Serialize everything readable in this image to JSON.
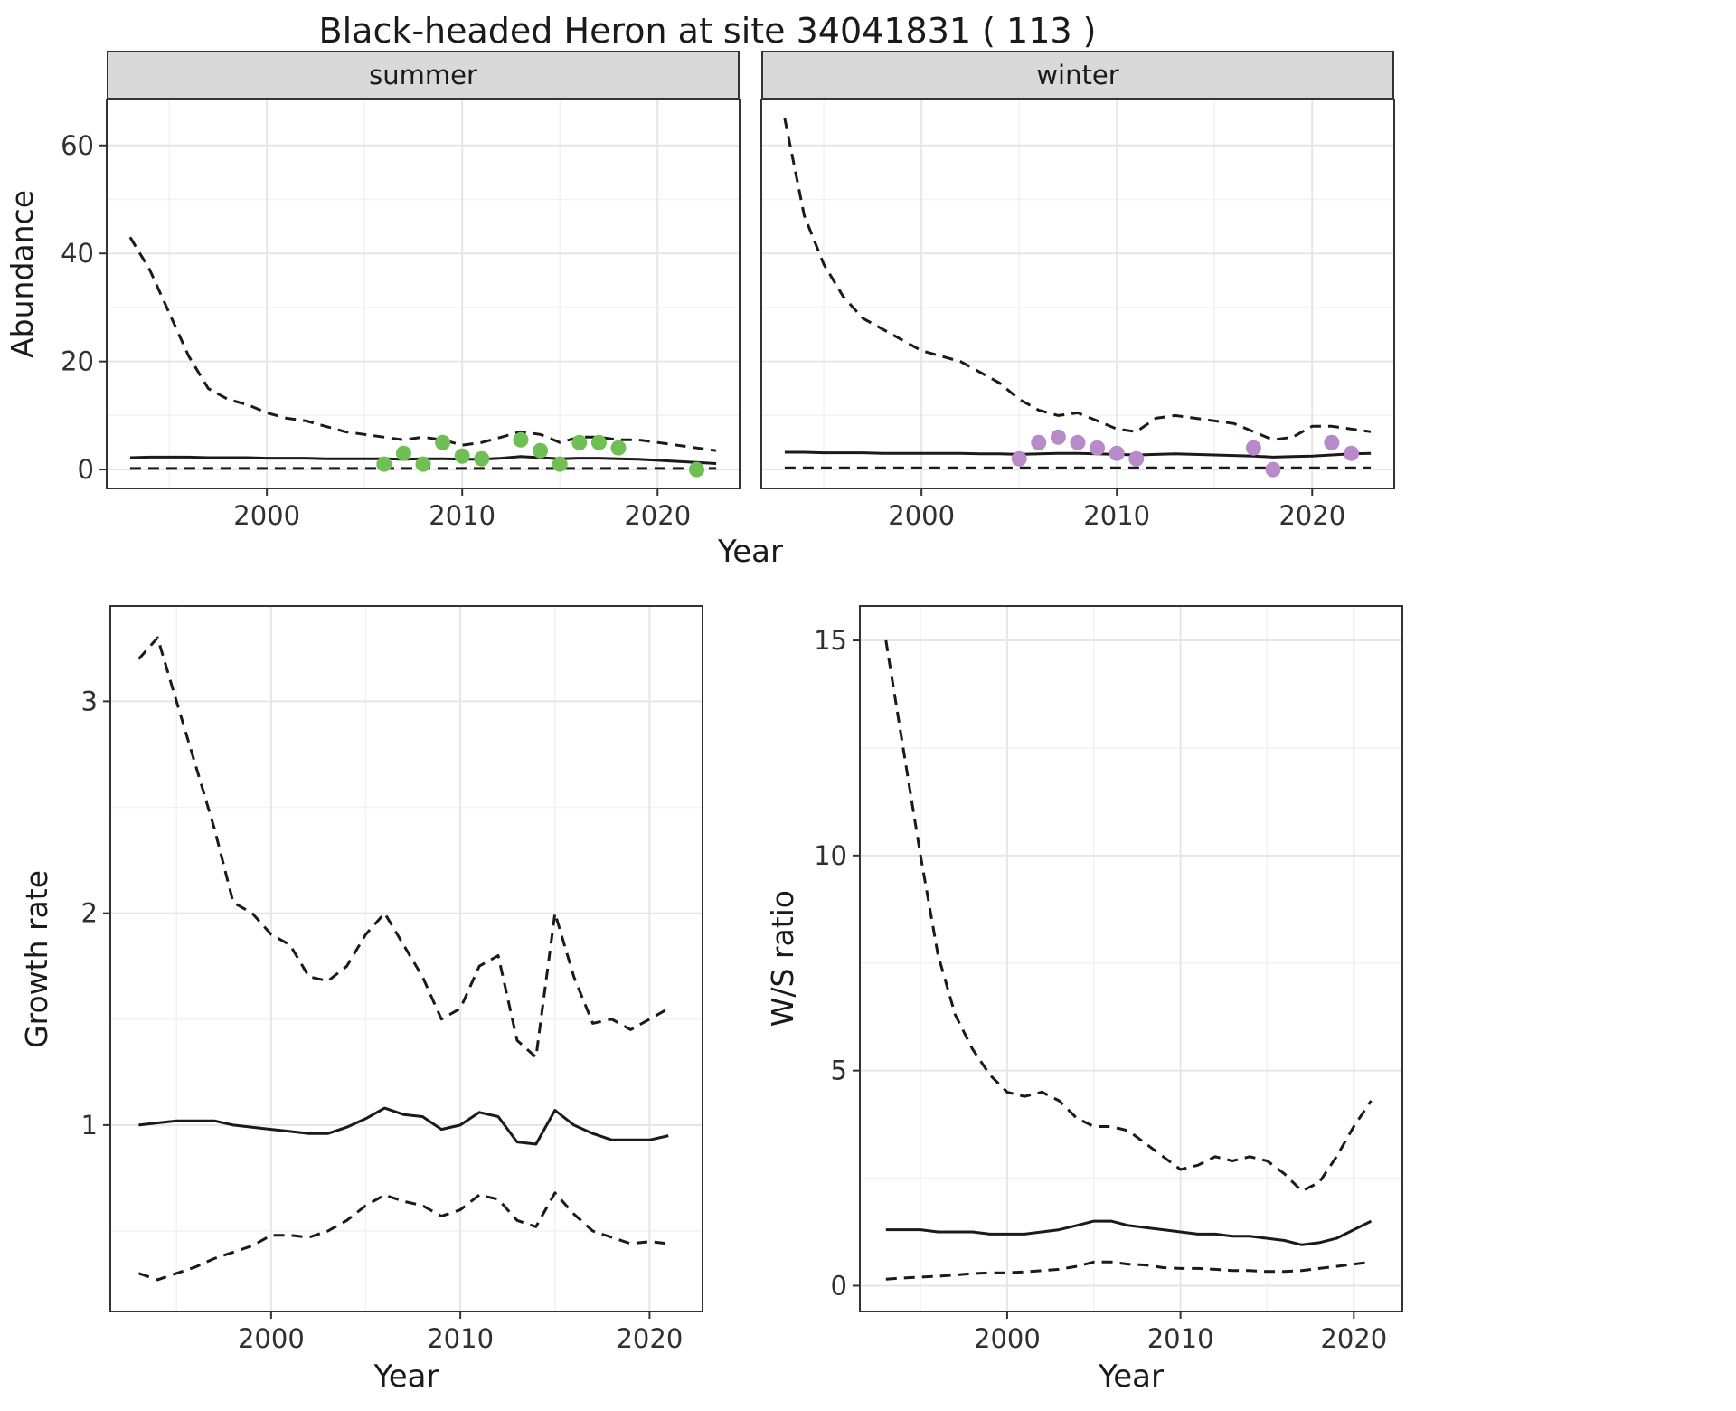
{
  "title": "Black-headed Heron at site 34041831 ( 113 )",
  "colors": {
    "line": "#1a1a1a",
    "panel_border": "#333333",
    "grid_major": "#e6e6e6",
    "grid_minor": "#f2f2f2",
    "strip_bg": "#d9d9d9",
    "summer_points": "#6fbf55",
    "winter_points": "#b78bca",
    "text": "#303030"
  },
  "chart_data": [
    {
      "type": "line",
      "facet_label": "summer",
      "xlabel": "Year",
      "ylabel": "Abundance",
      "xlim": [
        1991.8,
        2024.2
      ],
      "ylim": [
        -3.5,
        68.5
      ],
      "xticks": [
        2000,
        2010,
        2020
      ],
      "xminor": [
        1995,
        2005,
        2015
      ],
      "yticks": [
        0,
        20,
        40,
        60
      ],
      "yminor": [
        10,
        30,
        50
      ],
      "x": [
        1993,
        1994,
        1995,
        1996,
        1997,
        1998,
        1999,
        2000,
        2001,
        2002,
        2003,
        2004,
        2005,
        2006,
        2007,
        2008,
        2009,
        2010,
        2011,
        2012,
        2013,
        2014,
        2015,
        2016,
        2017,
        2018,
        2019,
        2020,
        2021,
        2022,
        2023
      ],
      "series": [
        {
          "name": "upper_95ci",
          "style": "dashed",
          "values": [
            43,
            37,
            29,
            21,
            15,
            13,
            12,
            10.5,
            9.5,
            9,
            8,
            7,
            6.5,
            6,
            5.5,
            6,
            5.5,
            4.5,
            5,
            6,
            7,
            6.5,
            5,
            6,
            6,
            5.5,
            5.5,
            5,
            4.5,
            4,
            3.5
          ]
        },
        {
          "name": "median",
          "style": "solid",
          "values": [
            2.2,
            2.3,
            2.3,
            2.3,
            2.2,
            2.2,
            2.2,
            2.1,
            2.1,
            2.1,
            2,
            2,
            2,
            2,
            1.9,
            2,
            2,
            1.9,
            1.9,
            2.1,
            2.4,
            2.2,
            2,
            2.1,
            2.1,
            2,
            1.9,
            1.7,
            1.5,
            1.3,
            1.1
          ]
        },
        {
          "name": "lower_95ci",
          "style": "dashed",
          "values": [
            0.2,
            0.2,
            0.2,
            0.2,
            0.2,
            0.2,
            0.2,
            0.2,
            0.2,
            0.2,
            0.2,
            0.2,
            0.2,
            0.2,
            0.2,
            0.2,
            0.2,
            0.2,
            0.2,
            0.2,
            0.2,
            0.2,
            0.2,
            0.2,
            0.2,
            0.2,
            0.2,
            0.2,
            0.2,
            0.2,
            0.2
          ]
        }
      ],
      "points": {
        "name": "observed-counts",
        "color": "#6fbf55",
        "x": [
          2006,
          2007,
          2008,
          2009,
          2010,
          2011,
          2013,
          2014,
          2015,
          2016,
          2017,
          2018,
          2022
        ],
        "y": [
          1,
          3,
          1,
          5,
          2.5,
          2,
          5.5,
          3.5,
          1,
          5,
          5,
          4,
          0
        ]
      }
    },
    {
      "type": "line",
      "facet_label": "winter",
      "xlabel": "Year",
      "ylabel": "Abundance",
      "xlim": [
        1991.8,
        2024.2
      ],
      "ylim": [
        -3.5,
        68.5
      ],
      "xticks": [
        2000,
        2010,
        2020
      ],
      "xminor": [
        1995,
        2005,
        2015
      ],
      "yticks": [
        0,
        20,
        40,
        60
      ],
      "yminor": [
        10,
        30,
        50
      ],
      "x": [
        1993,
        1994,
        1995,
        1996,
        1997,
        1998,
        1999,
        2000,
        2001,
        2002,
        2003,
        2004,
        2005,
        2006,
        2007,
        2008,
        2009,
        2010,
        2011,
        2012,
        2013,
        2014,
        2015,
        2016,
        2017,
        2018,
        2019,
        2020,
        2021,
        2022,
        2023
      ],
      "series": [
        {
          "name": "upper_95ci",
          "style": "dashed",
          "values": [
            65,
            47,
            38,
            32,
            28,
            26,
            24,
            22,
            21,
            20,
            18,
            16,
            13,
            11,
            10,
            10.5,
            9,
            7.5,
            7,
            9.5,
            10,
            9.5,
            9,
            8.5,
            7,
            5.5,
            6,
            8,
            8,
            7.5,
            7
          ]
        },
        {
          "name": "median",
          "style": "solid",
          "values": [
            3.2,
            3.2,
            3.1,
            3.1,
            3.1,
            3,
            3,
            3,
            3,
            3,
            2.9,
            2.9,
            2.8,
            2.9,
            3,
            3,
            2.9,
            2.8,
            2.7,
            2.8,
            2.9,
            2.8,
            2.7,
            2.6,
            2.5,
            2.3,
            2.4,
            2.5,
            2.7,
            2.9,
            3
          ]
        },
        {
          "name": "lower_95ci",
          "style": "dashed",
          "values": [
            0.3,
            0.3,
            0.3,
            0.3,
            0.3,
            0.3,
            0.3,
            0.3,
            0.3,
            0.3,
            0.3,
            0.3,
            0.3,
            0.3,
            0.3,
            0.3,
            0.3,
            0.3,
            0.3,
            0.3,
            0.3,
            0.3,
            0.3,
            0.3,
            0.3,
            0.3,
            0.3,
            0.3,
            0.3,
            0.3,
            0.3
          ]
        }
      ],
      "points": {
        "name": "observed-counts",
        "color": "#b78bca",
        "x": [
          2005,
          2006,
          2007,
          2008,
          2009,
          2010,
          2011,
          2017,
          2018,
          2021,
          2022
        ],
        "y": [
          2,
          5,
          6,
          5,
          4,
          3,
          2,
          4,
          0,
          5,
          3
        ]
      }
    },
    {
      "type": "line",
      "facet_label": "",
      "xlabel": "Year",
      "ylabel": "Growth rate",
      "xlim": [
        1991.5,
        2022.8
      ],
      "ylim": [
        0.12,
        3.45
      ],
      "xticks": [
        2000,
        2010,
        2020
      ],
      "xminor": [
        1995,
        2005,
        2015
      ],
      "yticks": [
        1,
        2,
        3
      ],
      "yminor": [
        0.5,
        1.5,
        2.5
      ],
      "x": [
        1993,
        1994,
        1995,
        1996,
        1997,
        1998,
        1999,
        2000,
        2001,
        2002,
        2003,
        2004,
        2005,
        2006,
        2007,
        2008,
        2009,
        2010,
        2011,
        2012,
        2013,
        2014,
        2015,
        2016,
        2017,
        2018,
        2019,
        2020,
        2021
      ],
      "series": [
        {
          "name": "upper_95ci",
          "style": "dashed",
          "values": [
            3.2,
            3.3,
            3,
            2.7,
            2.4,
            2.05,
            2,
            1.9,
            1.85,
            1.7,
            1.68,
            1.75,
            1.9,
            2,
            1.85,
            1.7,
            1.5,
            1.55,
            1.75,
            1.8,
            1.4,
            1.32,
            2,
            1.7,
            1.48,
            1.5,
            1.45,
            1.5,
            1.55
          ]
        },
        {
          "name": "median",
          "style": "solid",
          "values": [
            1,
            1.01,
            1.02,
            1.02,
            1.02,
            1,
            0.99,
            0.98,
            0.97,
            0.96,
            0.96,
            0.99,
            1.03,
            1.08,
            1.05,
            1.04,
            0.98,
            1,
            1.06,
            1.04,
            0.92,
            0.91,
            1.07,
            1,
            0.96,
            0.93,
            0.93,
            0.93,
            0.95
          ]
        },
        {
          "name": "lower_95ci",
          "style": "dashed",
          "values": [
            0.3,
            0.27,
            0.3,
            0.33,
            0.37,
            0.4,
            0.43,
            0.48,
            0.48,
            0.47,
            0.5,
            0.55,
            0.62,
            0.67,
            0.64,
            0.62,
            0.57,
            0.6,
            0.67,
            0.65,
            0.55,
            0.52,
            0.68,
            0.58,
            0.5,
            0.47,
            0.44,
            0.45,
            0.44
          ]
        }
      ],
      "points": null
    },
    {
      "type": "line",
      "facet_label": "",
      "xlabel": "Year",
      "ylabel": "W/S ratio",
      "xlim": [
        1991.5,
        2022.8
      ],
      "ylim": [
        -0.6,
        15.8
      ],
      "xticks": [
        2000,
        2010,
        2020
      ],
      "xminor": [
        1995,
        2005,
        2015
      ],
      "yticks": [
        0,
        5,
        10,
        15
      ],
      "yminor": [
        2.5,
        7.5,
        12.5
      ],
      "x": [
        1993,
        1994,
        1995,
        1996,
        1997,
        1998,
        1999,
        2000,
        2001,
        2002,
        2003,
        2004,
        2005,
        2006,
        2007,
        2008,
        2009,
        2010,
        2011,
        2012,
        2013,
        2014,
        2015,
        2016,
        2017,
        2018,
        2019,
        2020,
        2021
      ],
      "series": [
        {
          "name": "upper_95ci",
          "style": "dashed",
          "values": [
            15,
            12.5,
            10,
            7.7,
            6.3,
            5.5,
            4.9,
            4.5,
            4.4,
            4.5,
            4.3,
            3.9,
            3.7,
            3.7,
            3.6,
            3.3,
            3,
            2.7,
            2.8,
            3,
            2.9,
            3,
            2.9,
            2.6,
            2.2,
            2.4,
            3,
            3.7,
            4.3
          ]
        },
        {
          "name": "median",
          "style": "solid",
          "values": [
            1.3,
            1.3,
            1.3,
            1.25,
            1.25,
            1.25,
            1.2,
            1.2,
            1.2,
            1.25,
            1.3,
            1.4,
            1.5,
            1.5,
            1.4,
            1.35,
            1.3,
            1.25,
            1.2,
            1.2,
            1.15,
            1.15,
            1.1,
            1.05,
            0.95,
            1,
            1.1,
            1.3,
            1.5
          ]
        },
        {
          "name": "lower_95ci",
          "style": "dashed",
          "values": [
            0.15,
            0.18,
            0.2,
            0.22,
            0.25,
            0.28,
            0.3,
            0.3,
            0.32,
            0.35,
            0.38,
            0.45,
            0.55,
            0.55,
            0.5,
            0.48,
            0.42,
            0.4,
            0.4,
            0.38,
            0.35,
            0.35,
            0.33,
            0.33,
            0.35,
            0.4,
            0.45,
            0.5,
            0.55
          ]
        }
      ],
      "points": null
    }
  ]
}
